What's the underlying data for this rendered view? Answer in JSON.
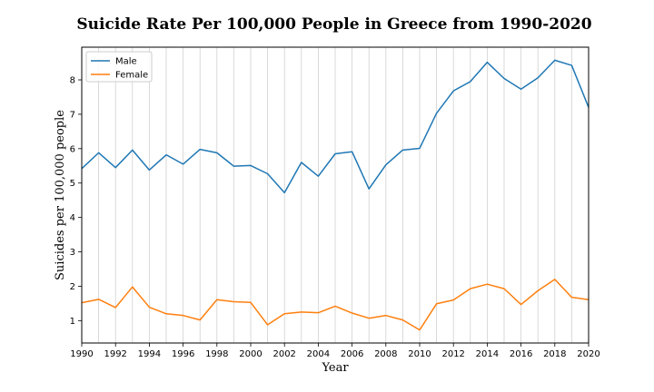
{
  "chart_data": {
    "type": "line",
    "title": "Suicide Rate Per 100,000 People in Greece from 1990-2020",
    "xlabel": "Year",
    "ylabel": "Suicides per 100,000 people",
    "xlim": [
      1990,
      2020
    ],
    "ylim": [
      0.35,
      8.95
    ],
    "xticks": [
      1990,
      1992,
      1994,
      1996,
      1998,
      2000,
      2002,
      2004,
      2006,
      2008,
      2010,
      2012,
      2014,
      2016,
      2018,
      2020
    ],
    "yticks": [
      1,
      2,
      3,
      4,
      5,
      6,
      7,
      8
    ],
    "grid": "vertical, every year",
    "legend": "top-left",
    "x": [
      1990,
      1991,
      1992,
      1993,
      1994,
      1995,
      1996,
      1997,
      1998,
      1999,
      2000,
      2001,
      2002,
      2003,
      2004,
      2005,
      2006,
      2007,
      2008,
      2009,
      2010,
      2011,
      2012,
      2013,
      2014,
      2015,
      2016,
      2017,
      2018,
      2019,
      2020
    ],
    "series": [
      {
        "name": "Male",
        "color": "#1f77b4",
        "values": [
          5.42,
          5.88,
          5.45,
          5.96,
          5.38,
          5.82,
          5.55,
          5.98,
          5.88,
          5.49,
          5.51,
          5.27,
          4.72,
          5.6,
          5.2,
          5.85,
          5.91,
          4.83,
          5.53,
          5.96,
          6.01,
          7.03,
          7.68,
          7.95,
          8.51,
          8.04,
          7.73,
          8.06,
          8.57,
          8.42,
          7.2
        ]
      },
      {
        "name": "Female",
        "color": "#ff7f0e",
        "values": [
          1.52,
          1.62,
          1.38,
          1.98,
          1.39,
          1.2,
          1.15,
          1.02,
          1.61,
          1.55,
          1.53,
          0.88,
          1.2,
          1.25,
          1.23,
          1.42,
          1.22,
          1.07,
          1.15,
          1.02,
          0.73,
          1.49,
          1.6,
          1.93,
          2.06,
          1.93,
          1.47,
          1.87,
          2.2,
          1.68,
          1.61
        ]
      }
    ]
  }
}
